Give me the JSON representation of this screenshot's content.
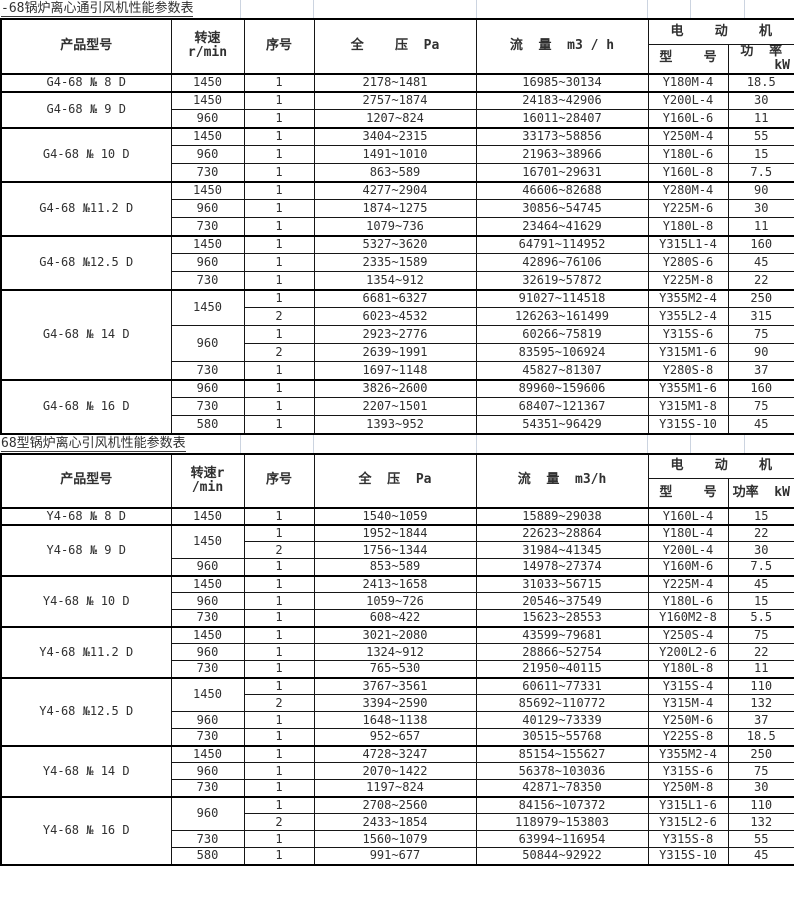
{
  "colors": {
    "table_border": "#000000",
    "grid_line": "#ccd4e0",
    "text": "#303030"
  },
  "tables": [
    {
      "title": "-68锅炉离心通引风机性能参数表",
      "headers": {
        "product": "产品型号",
        "speed_l1": "转速",
        "speed_l2": "r/min",
        "serial": "序号",
        "pressure": "全    压  Pa",
        "flow": "流  量  m3 / h",
        "motor_group": "电    动    机",
        "motor_model": "型    号",
        "power_l1": "功  率",
        "power_l2": "kW"
      },
      "groups": [
        {
          "model": "G4-68 № 8 D",
          "speeds": [
            {
              "rpm": "1450",
              "rows": [
                {
                  "seq": "1",
                  "pressure": "2178~1481",
                  "flow": "16985~30134",
                  "motor": "Y180M-4",
                  "power": "18.5"
                }
              ]
            }
          ]
        },
        {
          "model": "G4-68 № 9 D",
          "speeds": [
            {
              "rpm": "1450",
              "rows": [
                {
                  "seq": "1",
                  "pressure": "2757~1874",
                  "flow": "24183~42906",
                  "motor": "Y200L-4",
                  "power": "30"
                }
              ]
            },
            {
              "rpm": "960",
              "rows": [
                {
                  "seq": "1",
                  "pressure": "1207~824",
                  "flow": "16011~28407",
                  "motor": "Y160L-6",
                  "power": "11"
                }
              ]
            }
          ]
        },
        {
          "model": "G4-68 № 10 D",
          "speeds": [
            {
              "rpm": "1450",
              "rows": [
                {
                  "seq": "1",
                  "pressure": "3404~2315",
                  "flow": "33173~58856",
                  "motor": "Y250M-4",
                  "power": "55"
                }
              ]
            },
            {
              "rpm": "960",
              "rows": [
                {
                  "seq": "1",
                  "pressure": "1491~1010",
                  "flow": "21963~38966",
                  "motor": "Y180L-6",
                  "power": "15"
                }
              ]
            },
            {
              "rpm": "730",
              "rows": [
                {
                  "seq": "1",
                  "pressure": "863~589",
                  "flow": "16701~29631",
                  "motor": "Y160L-8",
                  "power": "7.5"
                }
              ]
            }
          ]
        },
        {
          "model": "G4-68 №11.2 D",
          "speeds": [
            {
              "rpm": "1450",
              "rows": [
                {
                  "seq": "1",
                  "pressure": "4277~2904",
                  "flow": "46606~82688",
                  "motor": "Y280M-4",
                  "power": "90"
                }
              ]
            },
            {
              "rpm": "960",
              "rows": [
                {
                  "seq": "1",
                  "pressure": "1874~1275",
                  "flow": "30856~54745",
                  "motor": "Y225M-6",
                  "power": "30"
                }
              ]
            },
            {
              "rpm": "730",
              "rows": [
                {
                  "seq": "1",
                  "pressure": "1079~736",
                  "flow": "23464~41629",
                  "motor": "Y180L-8",
                  "power": "11"
                }
              ]
            }
          ]
        },
        {
          "model": "G4-68 №12.5 D",
          "speeds": [
            {
              "rpm": "1450",
              "rows": [
                {
                  "seq": "1",
                  "pressure": "5327~3620",
                  "flow": "64791~114952",
                  "motor": "Y315L1-4",
                  "power": "160"
                }
              ]
            },
            {
              "rpm": "960",
              "rows": [
                {
                  "seq": "1",
                  "pressure": "2335~1589",
                  "flow": "42896~76106",
                  "motor": "Y280S-6",
                  "power": "45"
                }
              ]
            },
            {
              "rpm": "730",
              "rows": [
                {
                  "seq": "1",
                  "pressure": "1354~912",
                  "flow": "32619~57872",
                  "motor": "Y225M-8",
                  "power": "22"
                }
              ]
            }
          ]
        },
        {
          "model": "G4-68 № 14 D",
          "speeds": [
            {
              "rpm": "1450",
              "rows": [
                {
                  "seq": "1",
                  "pressure": "6681~6327",
                  "flow": "91027~114518",
                  "motor": "Y355M2-4",
                  "power": "250"
                },
                {
                  "seq": "2",
                  "pressure": "6023~4532",
                  "flow": "126263~161499",
                  "motor": "Y355L2-4",
                  "power": "315"
                }
              ]
            },
            {
              "rpm": "960",
              "rows": [
                {
                  "seq": "1",
                  "pressure": "2923~2776",
                  "flow": "60266~75819",
                  "motor": "Y315S-6",
                  "power": "75"
                },
                {
                  "seq": "2",
                  "pressure": "2639~1991",
                  "flow": "83595~106924",
                  "motor": "Y315M1-6",
                  "power": "90"
                }
              ]
            },
            {
              "rpm": "730",
              "rows": [
                {
                  "seq": "1",
                  "pressure": "1697~1148",
                  "flow": "45827~81307",
                  "motor": "Y280S-8",
                  "power": "37"
                }
              ]
            }
          ]
        },
        {
          "model": "G4-68 № 16 D",
          "speeds": [
            {
              "rpm": "960",
              "rows": [
                {
                  "seq": "1",
                  "pressure": "3826~2600",
                  "flow": "89960~159606",
                  "motor": "Y355M1-6",
                  "power": "160"
                }
              ]
            },
            {
              "rpm": "730",
              "rows": [
                {
                  "seq": "1",
                  "pressure": "2207~1501",
                  "flow": "68407~121367",
                  "motor": "Y315M1-8",
                  "power": "75"
                }
              ]
            },
            {
              "rpm": "580",
              "rows": [
                {
                  "seq": "1",
                  "pressure": "1393~952",
                  "flow": "54351~96429",
                  "motor": "Y315S-10",
                  "power": "45"
                }
              ]
            }
          ]
        }
      ]
    },
    {
      "title": "68型锅炉离心引风机性能参数表",
      "headers": {
        "product": "产品型号",
        "speed_l1": "转速r",
        "speed_l2": "/min",
        "serial": "序号",
        "pressure": "全  压  Pa",
        "flow": "流  量  m3/h",
        "motor_group": "电    动    机",
        "motor_model": "型    号",
        "power_l1": "功率  kW",
        "power_l2": ""
      },
      "groups": [
        {
          "model": "Y4-68 № 8 D",
          "speeds": [
            {
              "rpm": "1450",
              "rows": [
                {
                  "seq": "1",
                  "pressure": "1540~1059",
                  "flow": "15889~29038",
                  "motor": "Y160L-4",
                  "power": "15"
                }
              ]
            }
          ]
        },
        {
          "model": "Y4-68 № 9 D",
          "speeds": [
            {
              "rpm": "1450",
              "rows": [
                {
                  "seq": "1",
                  "pressure": "1952~1844",
                  "flow": "22623~28864",
                  "motor": "Y180L-4",
                  "power": "22"
                },
                {
                  "seq": "2",
                  "pressure": "1756~1344",
                  "flow": "31984~41345",
                  "motor": "Y200L-4",
                  "power": "30"
                }
              ]
            },
            {
              "rpm": "960",
              "rows": [
                {
                  "seq": "1",
                  "pressure": "853~589",
                  "flow": "14978~27374",
                  "motor": "Y160M-6",
                  "power": "7.5"
                }
              ]
            }
          ]
        },
        {
          "model": "Y4-68 № 10 D",
          "speeds": [
            {
              "rpm": "1450",
              "rows": [
                {
                  "seq": "1",
                  "pressure": "2413~1658",
                  "flow": "31033~56715",
                  "motor": "Y225M-4",
                  "power": "45"
                }
              ]
            },
            {
              "rpm": "960",
              "rows": [
                {
                  "seq": "1",
                  "pressure": "1059~726",
                  "flow": "20546~37549",
                  "motor": "Y180L-6",
                  "power": "15"
                }
              ]
            },
            {
              "rpm": "730",
              "rows": [
                {
                  "seq": "1",
                  "pressure": "608~422",
                  "flow": "15623~28553",
                  "motor": "Y160M2-8",
                  "power": "5.5"
                }
              ]
            }
          ]
        },
        {
          "model": "Y4-68 №11.2 D",
          "speeds": [
            {
              "rpm": "1450",
              "rows": [
                {
                  "seq": "1",
                  "pressure": "3021~2080",
                  "flow": "43599~79681",
                  "motor": "Y250S-4",
                  "power": "75"
                }
              ]
            },
            {
              "rpm": "960",
              "rows": [
                {
                  "seq": "1",
                  "pressure": "1324~912",
                  "flow": "28866~52754",
                  "motor": "Y200L2-6",
                  "power": "22"
                }
              ]
            },
            {
              "rpm": "730",
              "rows": [
                {
                  "seq": "1",
                  "pressure": "765~530",
                  "flow": "21950~40115",
                  "motor": "Y180L-8",
                  "power": "11"
                }
              ]
            }
          ]
        },
        {
          "model": "Y4-68 №12.5 D",
          "speeds": [
            {
              "rpm": "1450",
              "rows": [
                {
                  "seq": "1",
                  "pressure": "3767~3561",
                  "flow": "60611~77331",
                  "motor": "Y315S-4",
                  "power": "110"
                },
                {
                  "seq": "2",
                  "pressure": "3394~2590",
                  "flow": "85692~110772",
                  "motor": "Y315M-4",
                  "power": "132"
                }
              ]
            },
            {
              "rpm": "960",
              "rows": [
                {
                  "seq": "1",
                  "pressure": "1648~1138",
                  "flow": "40129~73339",
                  "motor": "Y250M-6",
                  "power": "37"
                }
              ]
            },
            {
              "rpm": "730",
              "rows": [
                {
                  "seq": "1",
                  "pressure": "952~657",
                  "flow": "30515~55768",
                  "motor": "Y225S-8",
                  "power": "18.5"
                }
              ]
            }
          ]
        },
        {
          "model": "Y4-68 № 14 D",
          "speeds": [
            {
              "rpm": "1450",
              "rows": [
                {
                  "seq": "1",
                  "pressure": "4728~3247",
                  "flow": "85154~155627",
                  "motor": "Y355M2-4",
                  "power": "250"
                }
              ]
            },
            {
              "rpm": "960",
              "rows": [
                {
                  "seq": "1",
                  "pressure": "2070~1422",
                  "flow": "56378~103036",
                  "motor": "Y315S-6",
                  "power": "75"
                }
              ]
            },
            {
              "rpm": "730",
              "rows": [
                {
                  "seq": "1",
                  "pressure": "1197~824",
                  "flow": "42871~78350",
                  "motor": "Y250M-8",
                  "power": "30"
                }
              ]
            }
          ]
        },
        {
          "model": "Y4-68 № 16 D",
          "speeds": [
            {
              "rpm": "960",
              "rows": [
                {
                  "seq": "1",
                  "pressure": "2708~2560",
                  "flow": "84156~107372",
                  "motor": "Y315L1-6",
                  "power": "110"
                },
                {
                  "seq": "2",
                  "pressure": "2433~1854",
                  "flow": "118979~153803",
                  "motor": "Y315L2-6",
                  "power": "132"
                }
              ]
            },
            {
              "rpm": "730",
              "rows": [
                {
                  "seq": "1",
                  "pressure": "1560~1079",
                  "flow": "63994~116954",
                  "motor": "Y315S-8",
                  "power": "55"
                }
              ]
            },
            {
              "rpm": "580",
              "rows": [
                {
                  "seq": "1",
                  "pressure": "991~677",
                  "flow": "50844~92922",
                  "motor": "Y315S-10",
                  "power": "45"
                }
              ]
            }
          ]
        }
      ]
    }
  ]
}
